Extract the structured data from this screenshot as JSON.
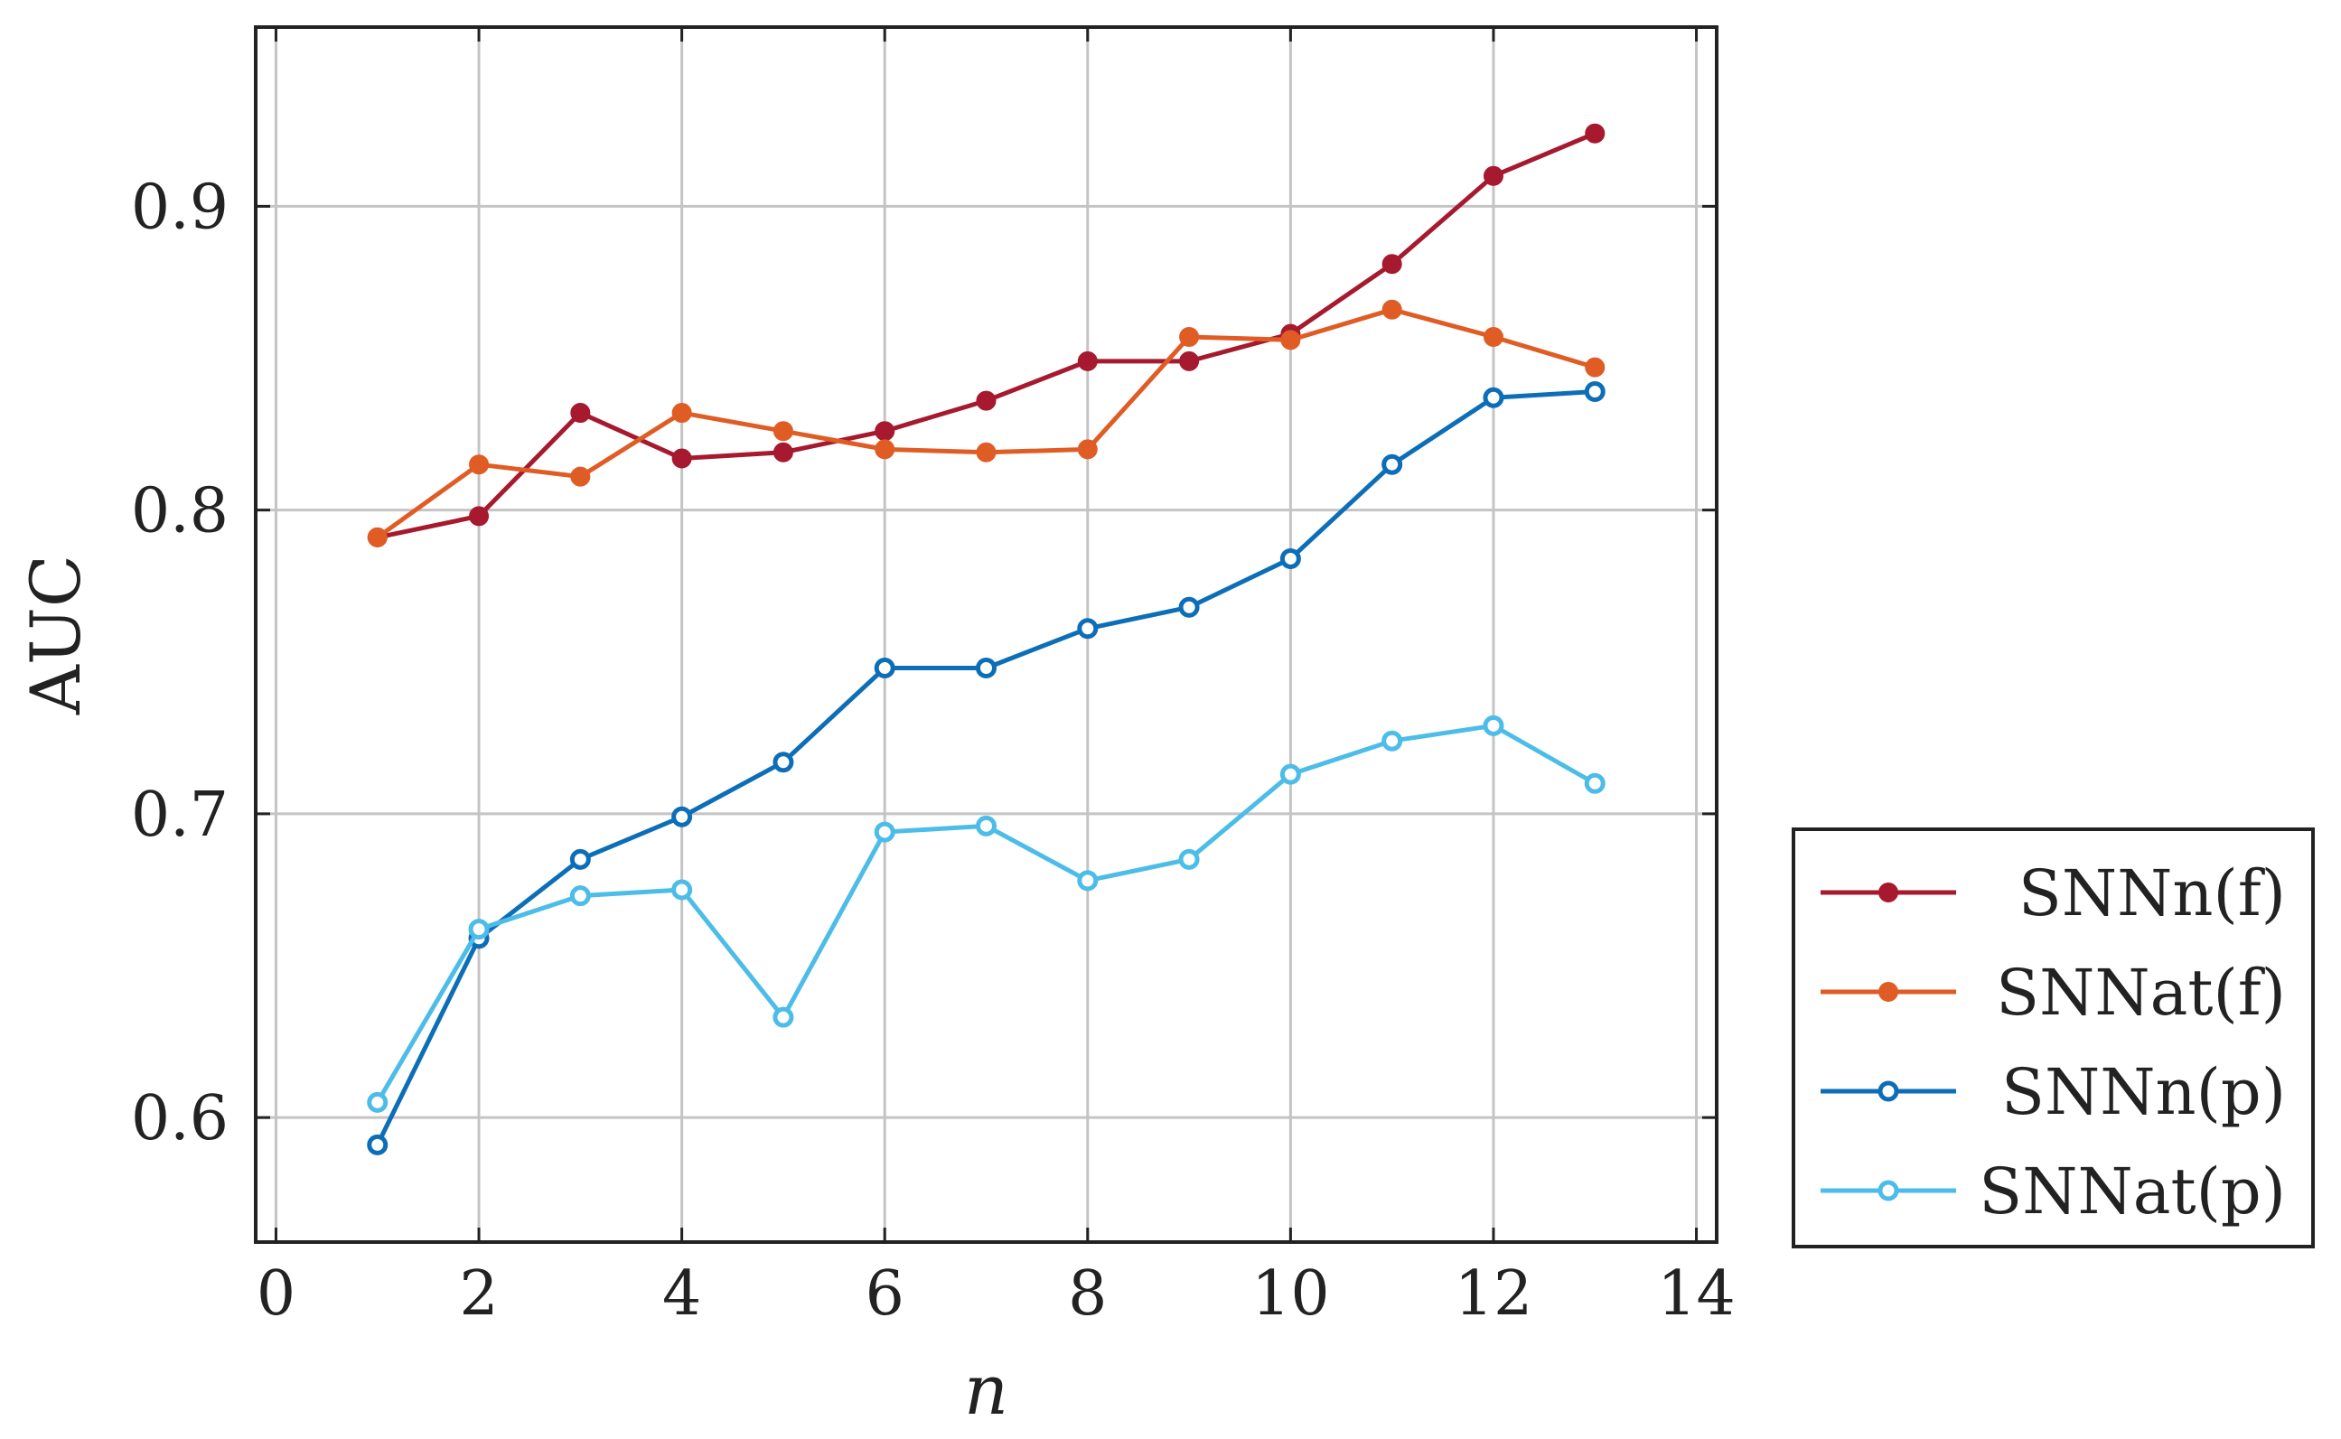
{
  "chart_data": {
    "type": "line",
    "title": "",
    "xlabel": "n",
    "ylabel": "AUC",
    "xlim": [
      -0.2,
      14.2
    ],
    "ylim": [
      0.559,
      0.959
    ],
    "x_ticks": [
      0,
      2,
      4,
      6,
      8,
      10,
      12,
      14
    ],
    "y_ticks": [
      0.6,
      0.7,
      0.8,
      0.9
    ],
    "x_tick_labels": [
      "0",
      "2",
      "4",
      "6",
      "8",
      "10",
      "12",
      "14"
    ],
    "y_tick_labels": [
      "0.6",
      "0.7",
      "0.8",
      "0.9"
    ],
    "grid": true,
    "legend_position": "outside-right-bottom",
    "x": [
      1,
      2,
      3,
      4,
      5,
      6,
      7,
      8,
      9,
      10,
      11,
      12,
      13
    ],
    "series": [
      {
        "name": "SNNn(f)",
        "color": "#a6192e",
        "marker": "filled-circle",
        "values": [
          0.791,
          0.798,
          0.832,
          0.817,
          0.819,
          0.826,
          0.836,
          0.849,
          0.849,
          0.858,
          0.881,
          0.91,
          0.924
        ]
      },
      {
        "name": "SNNat(f)",
        "color": "#e05c25",
        "marker": "filled-circle",
        "values": [
          0.791,
          0.815,
          0.811,
          0.832,
          0.826,
          0.82,
          0.819,
          0.82,
          0.857,
          0.856,
          0.866,
          0.857,
          0.847
        ]
      },
      {
        "name": "SNNn(p)",
        "color": "#0d6eb8",
        "marker": "open-circle",
        "values": [
          0.591,
          0.659,
          0.685,
          0.699,
          0.717,
          0.748,
          0.748,
          0.761,
          0.768,
          0.784,
          0.815,
          0.837,
          0.839
        ]
      },
      {
        "name": "SNNat(p)",
        "color": "#4cbce8",
        "marker": "open-circle",
        "values": [
          0.605,
          0.662,
          0.673,
          0.675,
          0.633,
          0.694,
          0.696,
          0.678,
          0.685,
          0.713,
          0.724,
          0.729,
          0.71
        ]
      }
    ]
  }
}
